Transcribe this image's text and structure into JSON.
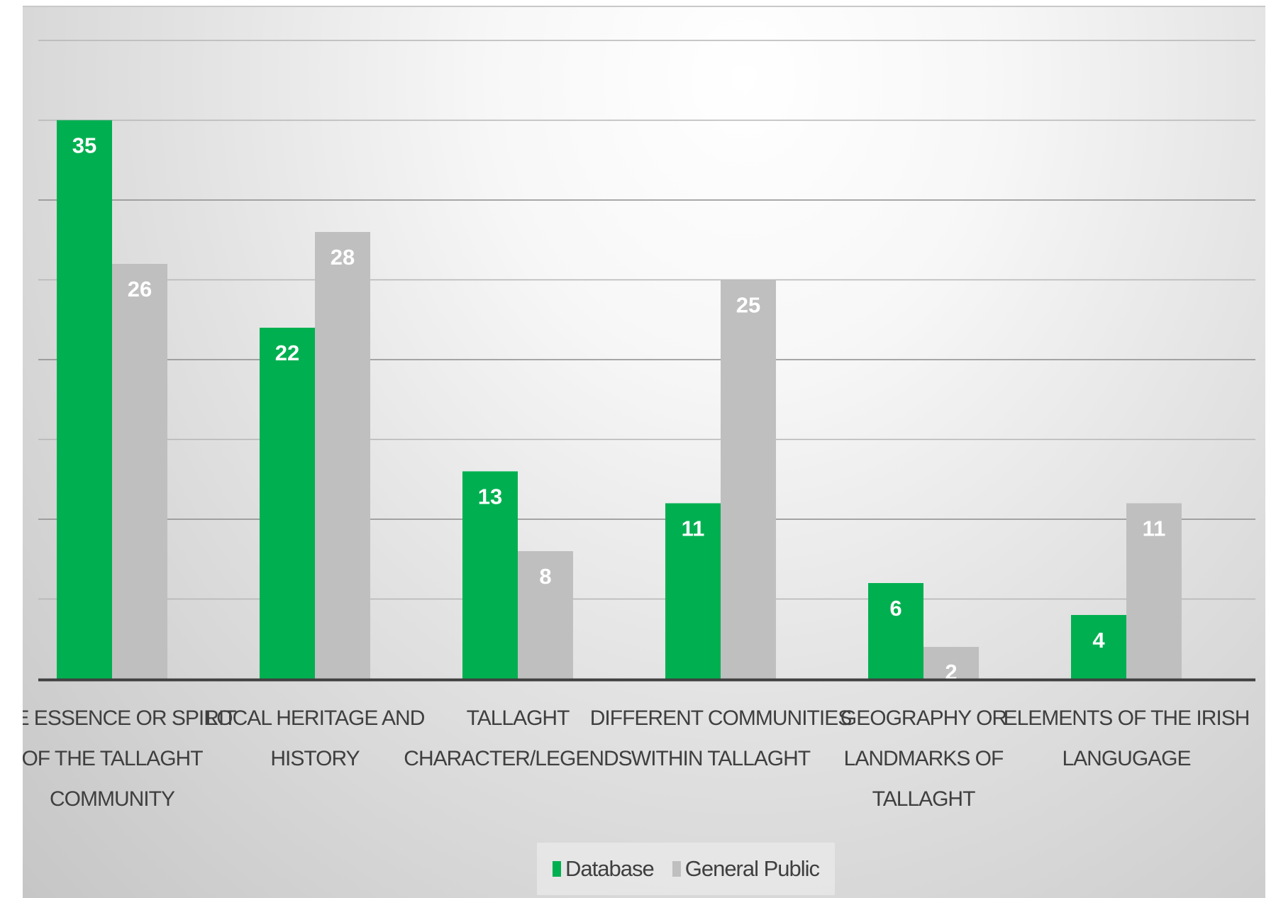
{
  "chart_data": {
    "type": "bar",
    "title": "",
    "xlabel": "",
    "ylabel": "",
    "ylim": [
      0,
      40
    ],
    "grid": true,
    "legend_position": "bottom",
    "categories": [
      "THE ESSENCE OR SPIRIT OF THE TALLAGHT COMMUNITY",
      "LOCAL HERITAGE AND HISTORY",
      "TALLAGHT CHARACTER/LEGENDS",
      "DIFFERENT COMMUNITIES WITHIN TALLAGHT",
      "GEOGRAPHY OR LANDMARKS OF TALLAGHT",
      "ELEMENTS OF THE IRISH LANGUAGE"
    ],
    "category_lines": [
      [
        "THE ESSENCE OR SPIRIT",
        "OF THE TALLAGHT",
        "COMMUNITY"
      ],
      [
        "LOCAL HERITAGE AND",
        "HISTORY"
      ],
      [
        "TALLAGHT",
        "CHARACTER/LEGENDS"
      ],
      [
        "DIFFERENT COMMUNITIES",
        "WITHIN TALLAGHT"
      ],
      [
        "GEOGRAPHY OR",
        "LANDMARKS OF",
        "TALLAGHT"
      ],
      [
        "ELEMENTS OF THE IRISH",
        "LANGUGAGE"
      ]
    ],
    "series": [
      {
        "name": "Database",
        "values": [
          35,
          22,
          13,
          11,
          6,
          4
        ],
        "color": "#00b050"
      },
      {
        "name": "General Public",
        "values": [
          26,
          28,
          8,
          25,
          2,
          11
        ],
        "color": "#bfbfbf"
      }
    ]
  },
  "legend": {
    "items": [
      {
        "label": "Database",
        "color": "#00b050"
      },
      {
        "label": "General Public",
        "color": "#bfbfbf"
      }
    ]
  }
}
